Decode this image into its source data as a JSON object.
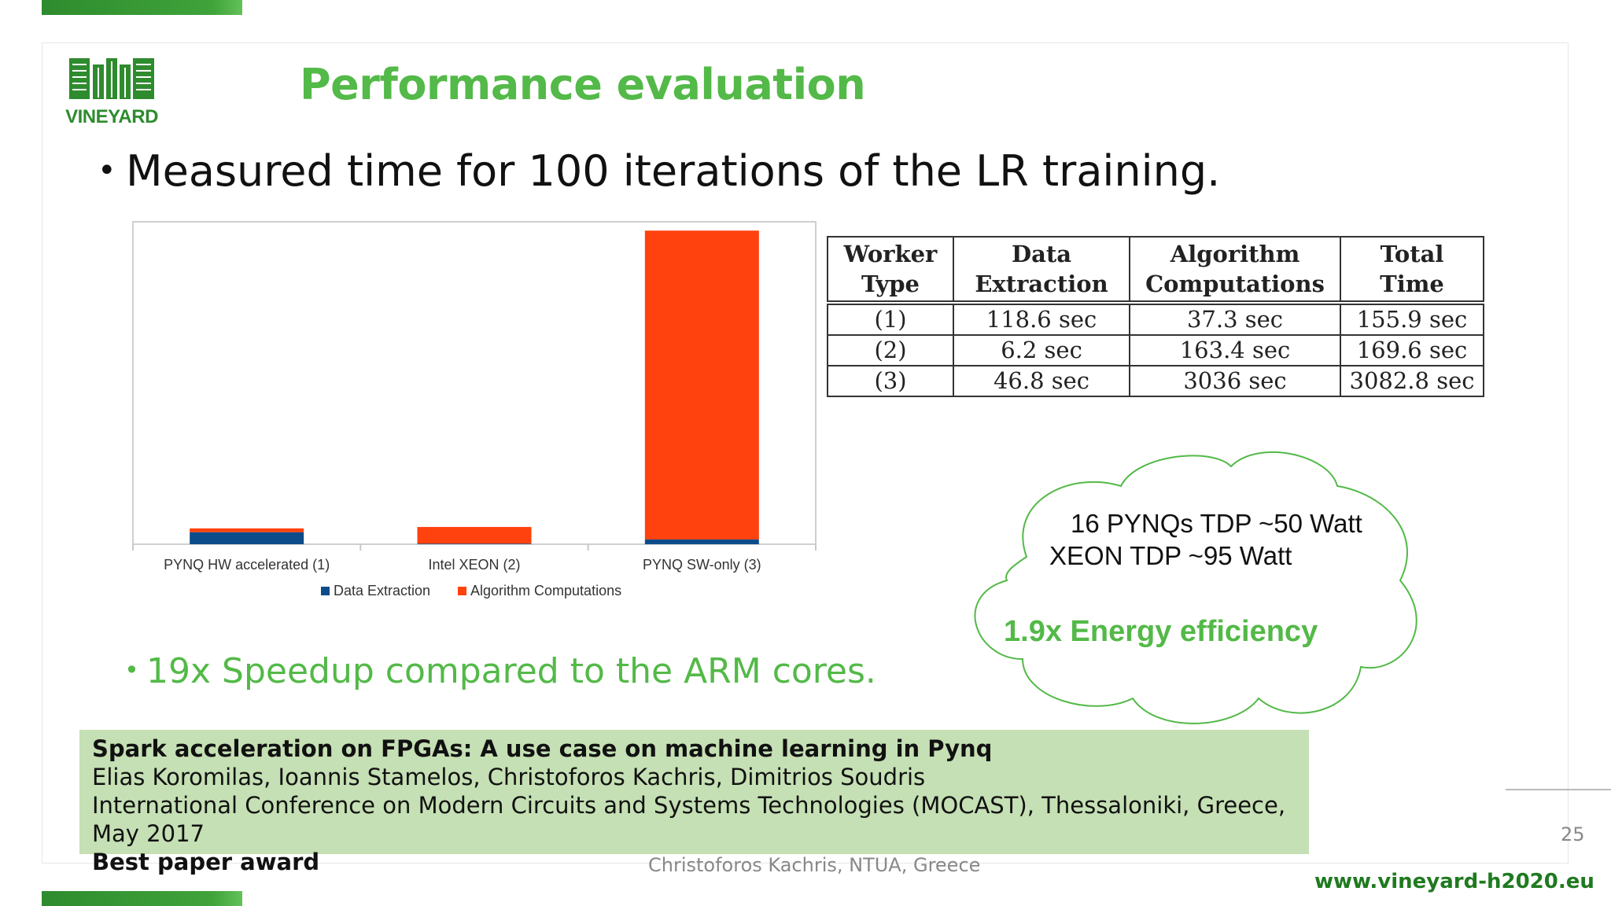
{
  "header": {
    "logo_text": "VINEYARD",
    "title": "Performance evaluation"
  },
  "bullets": {
    "main": "Measured time for 100 iterations of the LR training.",
    "speedup": "19x Speedup compared to the ARM cores."
  },
  "chart_data": {
    "type": "bar",
    "stacked": true,
    "categories": [
      "PYNQ HW accelerated (1)",
      "Intel XEON (2)",
      "PYNQ SW-only (3)"
    ],
    "series": [
      {
        "name": "Data Extraction",
        "values": [
          118.6,
          6.2,
          46.8
        ],
        "color": "#0d4c8b"
      },
      {
        "name": "Algorithm Computations",
        "values": [
          37.3,
          163.4,
          3036
        ],
        "color": "#ff420e"
      }
    ],
    "ylim": [
      0,
      3100
    ],
    "grid": false,
    "legend": "bottom"
  },
  "table": {
    "headers": [
      [
        "Worker",
        "Type"
      ],
      [
        "Data",
        "Extraction"
      ],
      [
        "Algorithm",
        "Computations"
      ],
      [
        "Total",
        "Time"
      ]
    ],
    "rows": [
      [
        "(1)",
        "118.6 sec",
        "37.3 sec",
        "155.9 sec"
      ],
      [
        "(2)",
        "6.2 sec",
        "163.4 sec",
        "169.6 sec"
      ],
      [
        "(3)",
        "46.8 sec",
        "3036 sec",
        "3082.8 sec"
      ]
    ]
  },
  "cloud": {
    "line1": "16 PYNQs TDP ~50 Watt",
    "line2": "XEON TDP ~95 Watt",
    "highlight": "1.9x Energy efficiency"
  },
  "reference": {
    "title": "Spark acceleration on FPGAs: A use case on machine learning in Pynq",
    "authors": "Elias Koromilas, Ioannis Stamelos, Christoforos Kachris, Dimitrios Soudris",
    "venue": "International Conference on Modern Circuits and Systems Technologies (MOCAST), Thessaloniki, Greece, May 2017",
    "award": "Best paper award"
  },
  "footer": {
    "author": "Christoforos Kachris, NTUA, Greece",
    "page_number": "25",
    "url": "www.vineyard-h2020.eu"
  },
  "colors": {
    "brand_green": "#53b948",
    "dark_green": "#2e8b2e",
    "reference_bg": "#c5e0b4"
  }
}
